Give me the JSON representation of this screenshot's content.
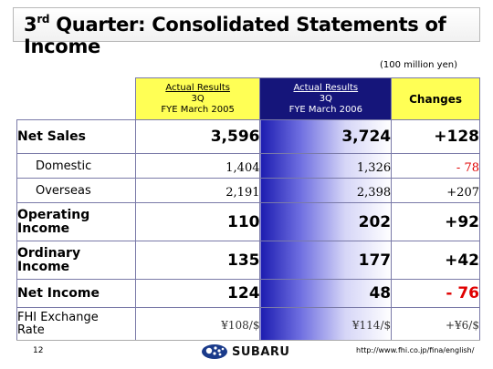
{
  "slide": {
    "title_prefix": "3",
    "title_sup": "rd",
    "title_rest": " Quarter: Consolidated Statements of Income",
    "unit": "(100 million yen)"
  },
  "columns": {
    "c2005": {
      "line1": "Actual Results",
      "line2": "3Q",
      "line3": "FYE March 2005"
    },
    "c2006": {
      "line1": "Actual Results",
      "line2": "3Q",
      "line3": "FYE March 2006"
    },
    "changes": "Changes"
  },
  "rows": {
    "net_sales": {
      "label": "Net Sales",
      "v2005": "3,596",
      "v2006": "3,724",
      "change": "+128"
    },
    "domestic": {
      "label": "Domestic",
      "v2005": "1,404",
      "v2006": "1,326",
      "change": "- 78"
    },
    "overseas": {
      "label": "Overseas",
      "v2005": "2,191",
      "v2006": "2,398",
      "change": "+207"
    },
    "operating_income": {
      "label_line1": "Operating",
      "label_line2": "Income",
      "v2005": "110",
      "v2006": "202",
      "change": "+92"
    },
    "ordinary_income": {
      "label_line1": "Ordinary",
      "label_line2": "Income",
      "v2005": "135",
      "v2006": "177",
      "change": "+42"
    },
    "net_income": {
      "label": "Net Income",
      "v2005": "124",
      "v2006": "48",
      "change": "- 76"
    },
    "fx_rate": {
      "label_line1": "FHI Exchange",
      "label_line2": "Rate",
      "v2005": "¥108/$",
      "v2006": "¥114/$",
      "change": "+¥6/$"
    }
  },
  "footer": {
    "page": "12",
    "brand": "SUBARU",
    "url": "http://www.fhi.co.jp/fina/english/"
  },
  "colors": {
    "header_yellow": "#ffff55",
    "header_navy": "#15157a",
    "negative": "#e00000"
  }
}
